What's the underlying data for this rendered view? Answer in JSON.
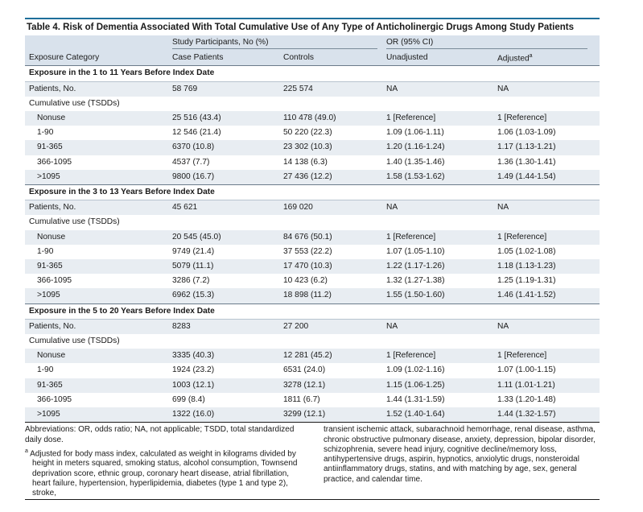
{
  "title": "Table 4. Risk of Dementia Associated With Total Cumulative Use of Any Type of Anticholinergic Drugs Among Study Patients",
  "header": {
    "group1": "Study Participants, No (%)",
    "group2": "OR (95% CI)",
    "col0": "Exposure Category",
    "col1": "Case Patients",
    "col2": "Controls",
    "col3": "Unadjusted",
    "col4": "Adjusted",
    "col4_sup": "a"
  },
  "sections": [
    {
      "heading": "Exposure in the 1 to 11 Years Before Index Date",
      "patients": [
        "Patients, No.",
        "58 769",
        "225 574",
        "NA",
        "NA"
      ],
      "cumulative_label": "Cumulative use (TSDDs)",
      "rows": [
        [
          "Nonuse",
          "25 516 (43.4)",
          "110 478 (49.0)",
          "1 [Reference]",
          "1 [Reference]"
        ],
        [
          "1-90",
          "12 546 (21.4)",
          "50 220 (22.3)",
          "1.09 (1.06-1.11)",
          "1.06 (1.03-1.09)"
        ],
        [
          "91-365",
          "6370 (10.8)",
          "23 302 (10.3)",
          "1.20 (1.16-1.24)",
          "1.17 (1.13-1.21)"
        ],
        [
          "366-1095",
          "4537 (7.7)",
          "14 138 (6.3)",
          "1.40 (1.35-1.46)",
          "1.36 (1.30-1.41)"
        ],
        [
          ">1095",
          "9800 (16.7)",
          "27 436 (12.2)",
          "1.58 (1.53-1.62)",
          "1.49 (1.44-1.54)"
        ]
      ]
    },
    {
      "heading": "Exposure in the 3 to 13 Years Before Index Date",
      "patients": [
        "Patients, No.",
        "45 621",
        "169 020",
        "NA",
        "NA"
      ],
      "cumulative_label": "Cumulative use (TSDDs)",
      "rows": [
        [
          "Nonuse",
          "20 545 (45.0)",
          "84 676 (50.1)",
          "1 [Reference]",
          "1 [Reference]"
        ],
        [
          "1-90",
          "9749 (21.4)",
          "37 553 (22.2)",
          "1.07 (1.05-1.10)",
          "1.05 (1.02-1.08)"
        ],
        [
          "91-365",
          "5079 (11.1)",
          "17 470 (10.3)",
          "1.22 (1.17-1.26)",
          "1.18 (1.13-1.23)"
        ],
        [
          "366-1095",
          "3286 (7.2)",
          "10 423 (6.2)",
          "1.32 (1.27-1.38)",
          "1.25 (1.19-1.31)"
        ],
        [
          ">1095",
          "6962 (15.3)",
          "18 898 (11.2)",
          "1.55 (1.50-1.60)",
          "1.46 (1.41-1.52)"
        ]
      ]
    },
    {
      "heading": "Exposure in the 5 to 20 Years Before Index Date",
      "patients": [
        "Patients, No.",
        "8283",
        "27 200",
        "NA",
        "NA"
      ],
      "cumulative_label": "Cumulative use (TSDDs)",
      "rows": [
        [
          "Nonuse",
          "3335 (40.3)",
          "12 281 (45.2)",
          "1 [Reference]",
          "1 [Reference]"
        ],
        [
          "1-90",
          "1924 (23.2)",
          "6531 (24.0)",
          "1.09 (1.02-1.16)",
          "1.07 (1.00-1.15)"
        ],
        [
          "91-365",
          "1003 (12.1)",
          "3278 (12.1)",
          "1.15 (1.06-1.25)",
          "1.11 (1.01-1.21)"
        ],
        [
          "366-1095",
          "699 (8.4)",
          "1811 (6.7)",
          "1.44 (1.31-1.59)",
          "1.33 (1.20-1.48)"
        ],
        [
          ">1095",
          "1322 (16.0)",
          "3299 (12.1)",
          "1.52 (1.40-1.64)",
          "1.44 (1.32-1.57)"
        ]
      ]
    }
  ],
  "footnotes": {
    "abbreviations": "Abbreviations: OR, odds ratio; NA, not applicable; TSDD, total standardized daily dose.",
    "note_a_marker": "a",
    "note_a_left": "Adjusted for body mass index, calculated as weight in kilograms divided by height in meters squared, smoking status, alcohol consumption, Townsend deprivation score, ethnic group, coronary heart disease, atrial fibrillation, heart failure, hypertension, hyperlipidemia, diabetes (type 1 and type 2), stroke,",
    "note_a_right": "transient ischemic attack, subarachnoid hemorrhage, renal disease, asthma, chronic obstructive pulmonary disease, anxiety, depression, bipolar disorder, schizophrenia, severe head injury, cognitive decline/memory loss, antihypertensive drugs, aspirin, hypnotics, anxiolytic drugs, nonsteroidal antiinflammatory drugs, statins, and with matching by age, sex, general practice, and calendar time."
  },
  "colors": {
    "accent_rule": "#1e6f9a",
    "header_fill": "#d9e2ec",
    "stripe_fill": "#e8edf2"
  }
}
